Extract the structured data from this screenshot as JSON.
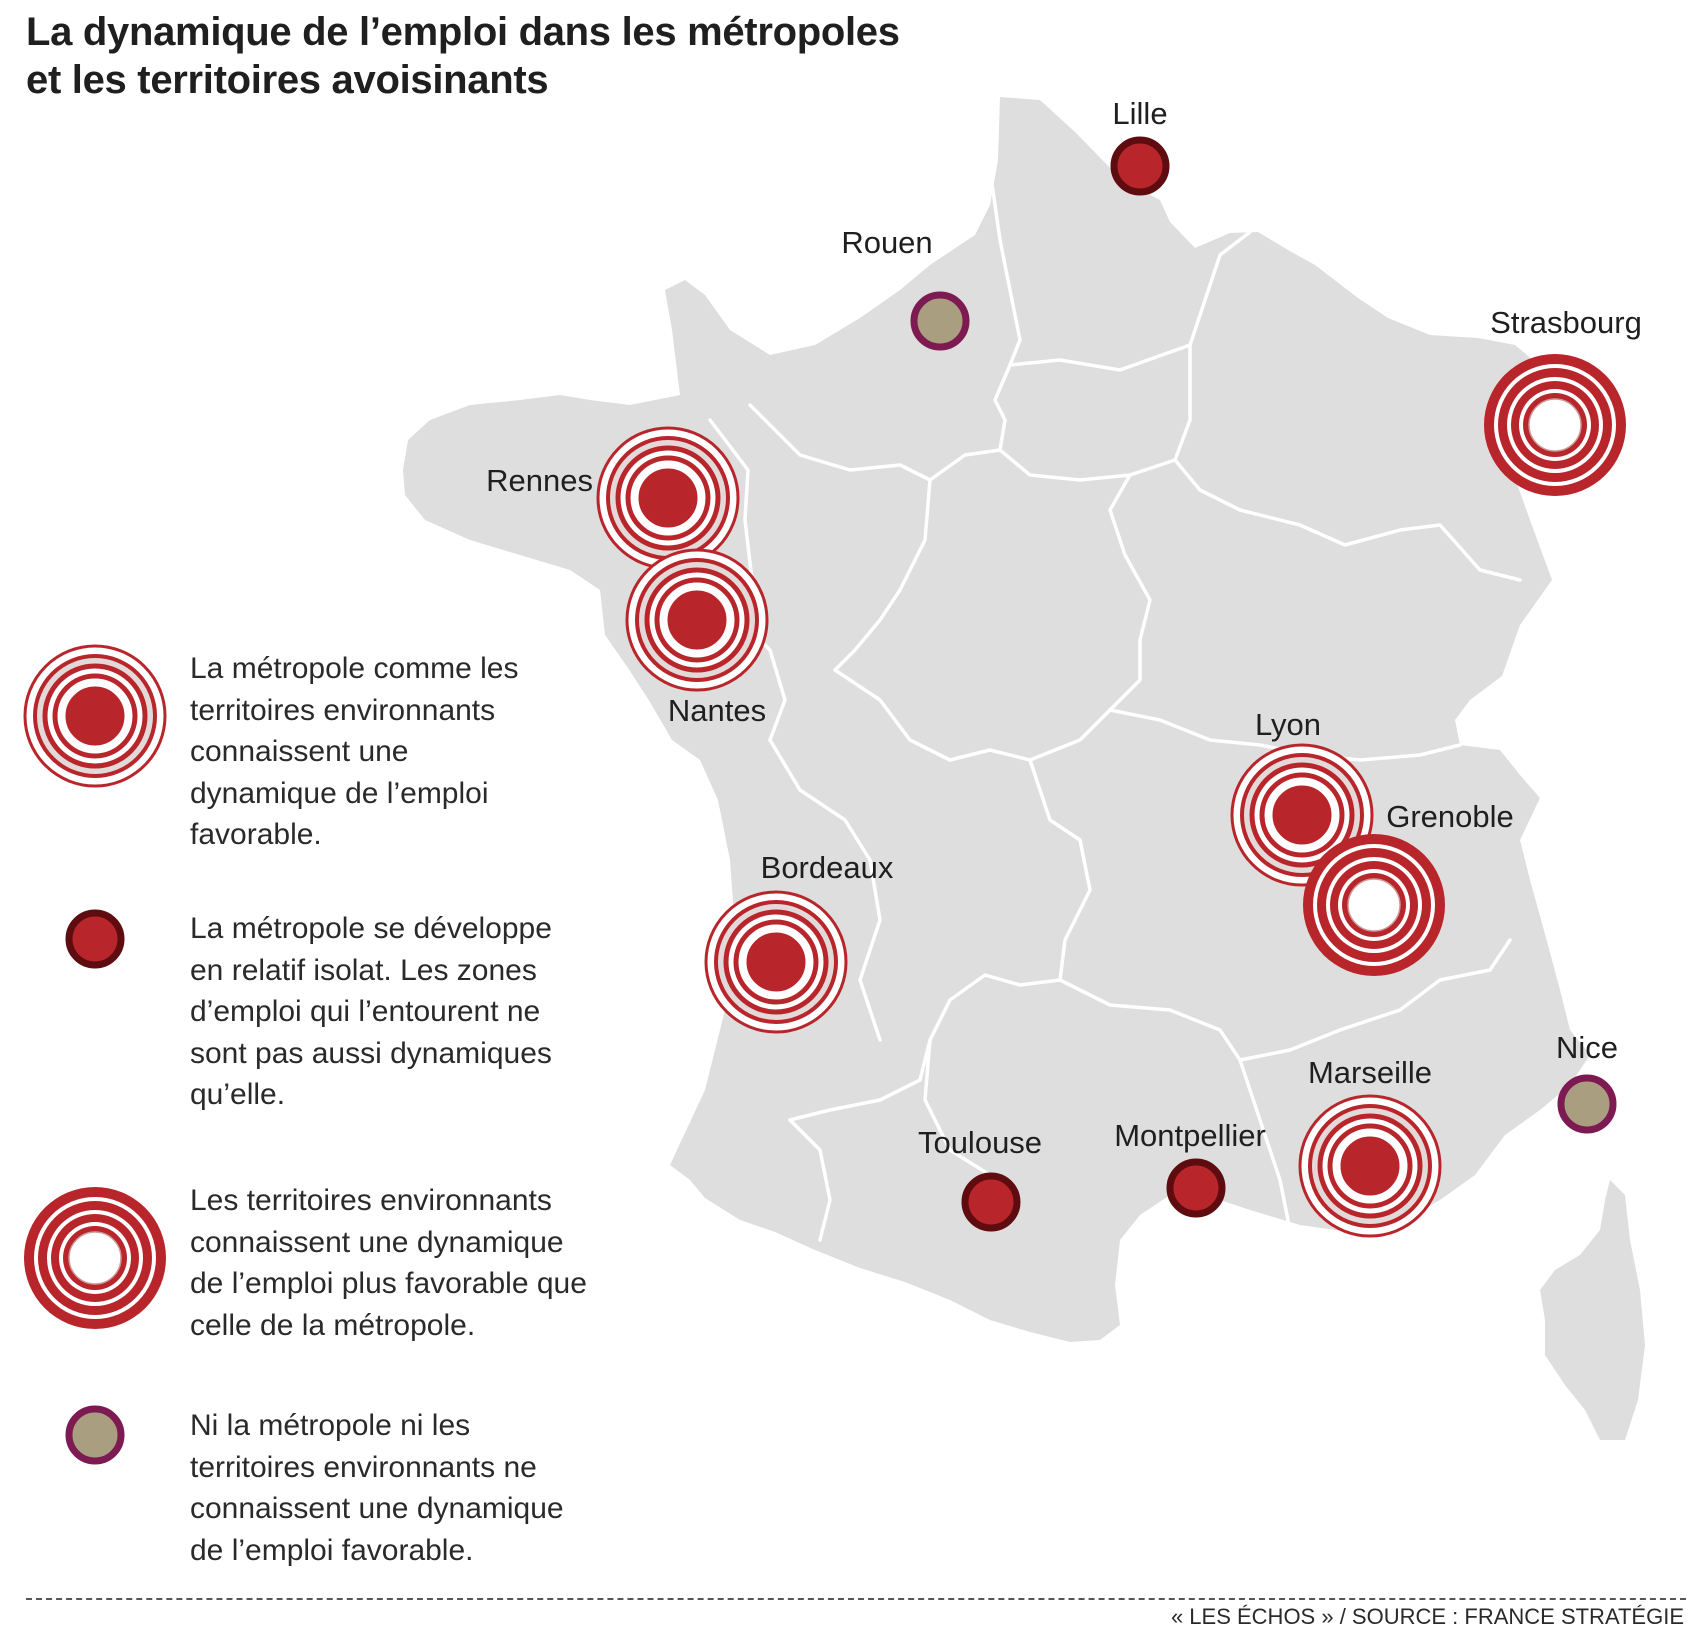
{
  "title": {
    "line1": "La dynamique de l’emploi dans les métropoles",
    "line2": "et les territoires avoisinants"
  },
  "cities": {
    "lille": "Lille",
    "rouen": "Rouen",
    "strasbourg": "Strasbourg",
    "rennes": "Rennes",
    "nantes": "Nantes",
    "lyon": "Lyon",
    "grenoble": "Grenoble",
    "bordeaux": "Bordeaux",
    "nice": "Nice",
    "marseille": "Marseille",
    "toulouse": "Toulouse",
    "montpellier": "Montpellier"
  },
  "city_categories": {
    "both_favorable": [
      "Rennes",
      "Nantes",
      "Lyon",
      "Bordeaux",
      "Marseille"
    ],
    "isolated_metropole": [
      "Lille",
      "Toulouse",
      "Montpellier"
    ],
    "surroundings_more_favorable": [
      "Strasbourg",
      "Grenoble"
    ],
    "neither_favorable": [
      "Rouen",
      "Nice"
    ]
  },
  "legend": [
    {
      "lines": [
        "La métropole comme les",
        "territoires environnants",
        "connaissent une",
        "dynamique de l’emploi",
        "favorable."
      ]
    },
    {
      "lines": [
        "La métropole  se développe",
        "en relatif isolat. Les zones",
        "d’emploi qui l’entourent ne",
        "sont pas aussi dynamiques",
        "qu’elle."
      ]
    },
    {
      "lines": [
        "Les territoires environnants",
        "connaissent une dynamique",
        "de l’emploi plus favorable que",
        "celle de la métropole."
      ]
    },
    {
      "lines": [
        "Ni la métropole ni les",
        "territoires environnants ne",
        "connaissent une dynamique",
        "de l’emploi favorable."
      ]
    }
  ],
  "colors": {
    "land": "#dedede",
    "border": "#ffffff",
    "red": "#b8262b",
    "dark_red_outline": "#5e0c10",
    "ring_white": "#ffffff",
    "beige_fill": "#aa9e80",
    "purple_outline": "#7d1a52"
  },
  "source": "« LES ÉCHOS » / SOURCE : FRANCE STRATÉGIE"
}
